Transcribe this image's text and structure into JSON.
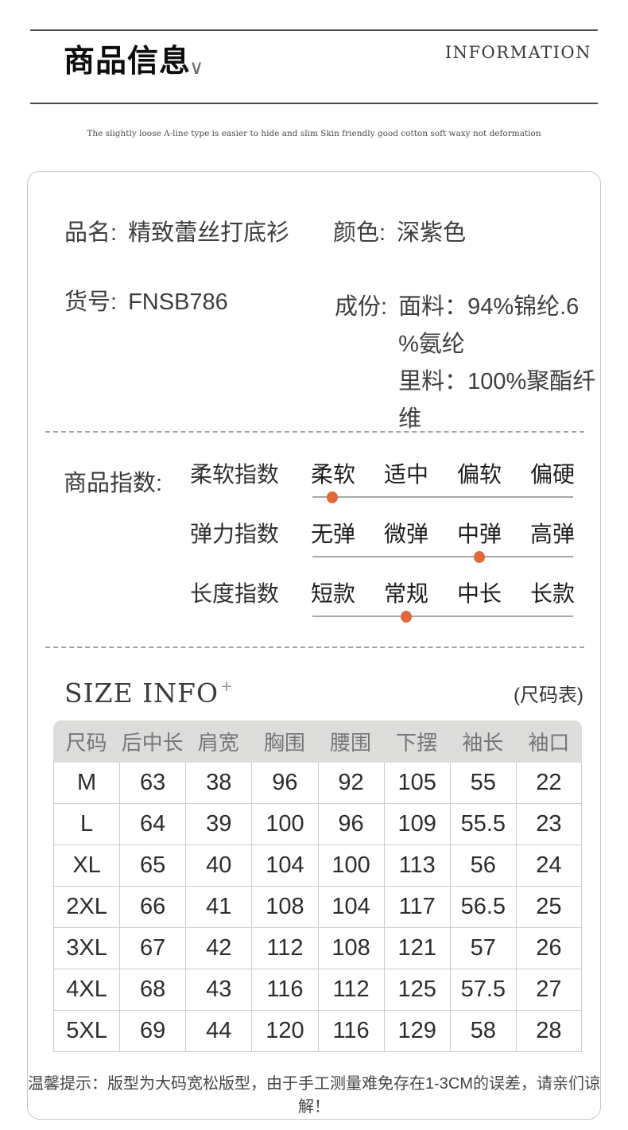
{
  "header": {
    "title": "商品信息",
    "chevron": "∨",
    "subtitle_en": "INFORMATION",
    "tagline": "The slightly loose A-line type is easier to hide and slim Skin friendly good cotton soft waxy not deformation"
  },
  "product": {
    "name_label": "品名:",
    "name_value": "精致蕾丝打底衫",
    "color_label": "颜色:",
    "color_value": "深紫色",
    "sku_label": "货号:",
    "sku_value": "FNSB786",
    "composition_label": "成份:",
    "composition_lines": [
      "面料：94%锦纶.6",
      "%氨纶",
      "里料：100%聚酯纤",
      "维"
    ]
  },
  "index_section": {
    "title": "商品指数:",
    "dot_color": "#e0683a",
    "rows": [
      {
        "label": "柔软指数",
        "options": [
          "柔软",
          "适中",
          "偏软",
          "偏硬"
        ],
        "selected": 0
      },
      {
        "label": "弹力指数",
        "options": [
          "无弹",
          "微弹",
          "中弹",
          "高弹"
        ],
        "selected": 2
      },
      {
        "label": "长度指数",
        "options": [
          "短款",
          "常规",
          "中长",
          "长款"
        ],
        "selected": 1
      }
    ]
  },
  "size_section": {
    "title": "SIZE INFO",
    "title_sup": "+",
    "title_right": "(尺码表)",
    "table": {
      "headers": [
        "尺码",
        "后中长",
        "肩宽",
        "胸围",
        "腰围",
        "下摆",
        "袖长",
        "袖口"
      ],
      "rows": [
        [
          "M",
          "63",
          "38",
          "96",
          "92",
          "105",
          "55",
          "22"
        ],
        [
          "L",
          "64",
          "39",
          "100",
          "96",
          "109",
          "55.5",
          "23"
        ],
        [
          "XL",
          "65",
          "40",
          "104",
          "100",
          "113",
          "56",
          "24"
        ],
        [
          "2XL",
          "66",
          "41",
          "108",
          "104",
          "117",
          "56.5",
          "25"
        ],
        [
          "3XL",
          "67",
          "42",
          "112",
          "108",
          "121",
          "57",
          "26"
        ],
        [
          "4XL",
          "68",
          "43",
          "116",
          "112",
          "125",
          "57.5",
          "27"
        ],
        [
          "5XL",
          "69",
          "44",
          "120",
          "116",
          "129",
          "58",
          "28"
        ]
      ]
    },
    "note": "温馨提示：版型为大码宽松版型，由于手工测量难免存在1-3CM的误差，请亲们谅解！"
  }
}
